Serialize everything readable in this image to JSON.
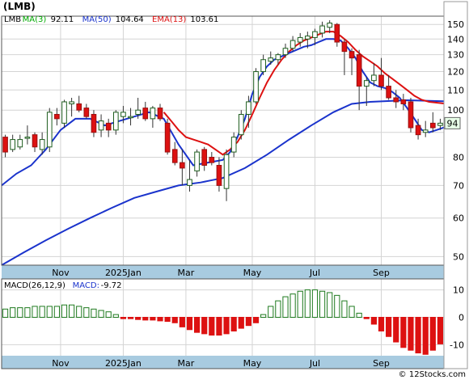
{
  "symbol_label": "(LMB)",
  "watermark": "© 12Stocks.com",
  "colors": {
    "up_candle": "#ffffff",
    "down_candle": "#dd1111",
    "ma3": "#00aa00",
    "ma50": "#1a33cc",
    "ema13": "#dd1111",
    "macd_pos": "#1e7a1e",
    "macd_neg": "#dd1111",
    "axis_band": "#a8cbe0",
    "price_tag_bg": "#e8ffe8"
  },
  "price_legend": [
    {
      "label": "LMB",
      "color": "#000000"
    },
    {
      "label": "MA(3)",
      "value": "92.11",
      "color": "#00aa00"
    },
    {
      "label": "MA(50)",
      "value": "104.64",
      "color": "#1a33cc"
    },
    {
      "label": "EMA(13)",
      "value": "103.61",
      "color": "#dd1111"
    }
  ],
  "macd_legend": [
    {
      "label": "MACD(26,12,9)",
      "color": "#000000"
    },
    {
      "label": "MACD:",
      "value": "-9.72",
      "color": "#1a33cc"
    }
  ],
  "last_price_tag": "94",
  "chart_data": [
    {
      "type": "candlestick",
      "scale": "log",
      "ylim": [
        48,
        156
      ],
      "y_ticks": [
        50,
        60,
        70,
        80,
        90,
        100,
        110,
        120,
        130,
        140,
        150
      ],
      "y_tick_labels": [
        "50",
        "60",
        "70",
        "80",
        "",
        "100",
        "110",
        "120",
        "130",
        "140",
        "150"
      ],
      "x_tick_labels": [
        {
          "label": "Nov",
          "week": 8
        },
        {
          "label": "2025Jan",
          "week": 16.5
        },
        {
          "label": "Mar",
          "week": 25
        },
        {
          "label": "May",
          "week": 34
        },
        {
          "label": "Jul",
          "week": 42.5
        },
        {
          "label": "Sep",
          "week": 51.5
        }
      ],
      "candles": [
        {
          "w": 0.5,
          "o": 88,
          "h": 89,
          "l": 80,
          "c": 82
        },
        {
          "w": 1.5,
          "o": 83,
          "h": 89,
          "l": 82,
          "c": 87
        },
        {
          "w": 2.5,
          "o": 84,
          "h": 89,
          "l": 83,
          "c": 87
        },
        {
          "w": 3.5,
          "o": 88,
          "h": 93,
          "l": 85,
          "c": 88
        },
        {
          "w": 4.5,
          "o": 89,
          "h": 90,
          "l": 82,
          "c": 84
        },
        {
          "w": 5.5,
          "o": 83,
          "h": 90,
          "l": 81,
          "c": 87
        },
        {
          "w": 6.5,
          "o": 84,
          "h": 101,
          "l": 82,
          "c": 99
        },
        {
          "w": 7.5,
          "o": 98,
          "h": 101,
          "l": 93,
          "c": 96
        },
        {
          "w": 8.5,
          "o": 94,
          "h": 105,
          "l": 92,
          "c": 104
        },
        {
          "w": 9.5,
          "o": 103,
          "h": 106,
          "l": 97,
          "c": 104
        },
        {
          "w": 10.5,
          "o": 103,
          "h": 107,
          "l": 99,
          "c": 100
        },
        {
          "w": 11.5,
          "o": 101,
          "h": 103,
          "l": 96,
          "c": 97
        },
        {
          "w": 12.5,
          "o": 98,
          "h": 100,
          "l": 88,
          "c": 90
        },
        {
          "w": 13.5,
          "o": 91,
          "h": 98,
          "l": 88,
          "c": 95
        },
        {
          "w": 14.5,
          "o": 94,
          "h": 96,
          "l": 88,
          "c": 91
        },
        {
          "w": 15.5,
          "o": 91,
          "h": 100,
          "l": 89,
          "c": 99
        },
        {
          "w": 16.5,
          "o": 97,
          "h": 102,
          "l": 94,
          "c": 99
        },
        {
          "w": 17.5,
          "o": 97,
          "h": 101,
          "l": 93,
          "c": 97
        },
        {
          "w": 18.5,
          "o": 98,
          "h": 106,
          "l": 96,
          "c": 100
        },
        {
          "w": 19.5,
          "o": 101,
          "h": 104,
          "l": 95,
          "c": 96
        },
        {
          "w": 20.5,
          "o": 96,
          "h": 102,
          "l": 92,
          "c": 101
        },
        {
          "w": 21.5,
          "o": 101,
          "h": 103,
          "l": 95,
          "c": 96
        },
        {
          "w": 22.5,
          "o": 94,
          "h": 96,
          "l": 81,
          "c": 82
        },
        {
          "w": 23.5,
          "o": 83,
          "h": 86,
          "l": 77,
          "c": 78
        },
        {
          "w": 24.5,
          "o": 78,
          "h": 83,
          "l": 70,
          "c": 76
        },
        {
          "w": 25.5,
          "o": 70,
          "h": 79,
          "l": 68,
          "c": 72
        },
        {
          "w": 26.5,
          "o": 75,
          "h": 83,
          "l": 73,
          "c": 82
        },
        {
          "w": 27.5,
          "o": 83,
          "h": 84,
          "l": 75,
          "c": 77
        },
        {
          "w": 28.5,
          "o": 80,
          "h": 82,
          "l": 77,
          "c": 78
        },
        {
          "w": 29.5,
          "o": 77,
          "h": 80,
          "l": 68,
          "c": 70
        },
        {
          "w": 30.5,
          "o": 69,
          "h": 83,
          "l": 65,
          "c": 81
        },
        {
          "w": 31.5,
          "o": 82,
          "h": 90,
          "l": 80,
          "c": 88
        },
        {
          "w": 32.5,
          "o": 89,
          "h": 100,
          "l": 87,
          "c": 98
        },
        {
          "w": 33.5,
          "o": 98,
          "h": 107,
          "l": 92,
          "c": 104
        },
        {
          "w": 34.5,
          "o": 104,
          "h": 122,
          "l": 103,
          "c": 120
        },
        {
          "w": 35.5,
          "o": 120,
          "h": 130,
          "l": 118,
          "c": 127
        },
        {
          "w": 36.5,
          "o": 126,
          "h": 132,
          "l": 124,
          "c": 128
        },
        {
          "w": 37.5,
          "o": 127,
          "h": 131,
          "l": 124,
          "c": 130
        },
        {
          "w": 38.5,
          "o": 130,
          "h": 137,
          "l": 128,
          "c": 134
        },
        {
          "w": 39.5,
          "o": 134,
          "h": 142,
          "l": 132,
          "c": 139
        },
        {
          "w": 40.5,
          "o": 138,
          "h": 144,
          "l": 135,
          "c": 141
        },
        {
          "w": 41.5,
          "o": 140,
          "h": 145,
          "l": 134,
          "c": 142
        },
        {
          "w": 42.5,
          "o": 141,
          "h": 147,
          "l": 136,
          "c": 145
        },
        {
          "w": 43.5,
          "o": 144,
          "h": 152,
          "l": 141,
          "c": 149
        },
        {
          "w": 44.5,
          "o": 148,
          "h": 153,
          "l": 144,
          "c": 151
        },
        {
          "w": 45.5,
          "o": 150,
          "h": 151,
          "l": 135,
          "c": 138
        },
        {
          "w": 46.5,
          "o": 138,
          "h": 140,
          "l": 118,
          "c": 132
        },
        {
          "w": 47.5,
          "o": 132,
          "h": 134,
          "l": 118,
          "c": 128
        },
        {
          "w": 48.5,
          "o": 130,
          "h": 133,
          "l": 100,
          "c": 112
        },
        {
          "w": 49.5,
          "o": 112,
          "h": 117,
          "l": 102,
          "c": 115
        },
        {
          "w": 50.5,
          "o": 115,
          "h": 125,
          "l": 112,
          "c": 118
        },
        {
          "w": 51.5,
          "o": 118,
          "h": 128,
          "l": 110,
          "c": 112
        },
        {
          "w": 52.5,
          "o": 112,
          "h": 118,
          "l": 105,
          "c": 106
        },
        {
          "w": 53.5,
          "o": 106,
          "h": 110,
          "l": 101,
          "c": 104
        },
        {
          "w": 54.5,
          "o": 105,
          "h": 108,
          "l": 100,
          "c": 103
        },
        {
          "w": 55.5,
          "o": 104,
          "h": 106,
          "l": 90,
          "c": 92
        },
        {
          "w": 56.5,
          "o": 93,
          "h": 96,
          "l": 87,
          "c": 89
        },
        {
          "w": 57.5,
          "o": 90,
          "h": 95,
          "l": 88,
          "c": 91
        },
        {
          "w": 58.5,
          "o": 94,
          "h": 99,
          "l": 90,
          "c": 92
        },
        {
          "w": 59.5,
          "o": 93,
          "h": 96,
          "l": 91,
          "c": 94
        }
      ],
      "series": [
        {
          "name": "MA(50)",
          "color": "#1a33cc",
          "points": [
            [
              0,
              48
            ],
            [
              3,
              51
            ],
            [
              6,
              54
            ],
            [
              9,
              57
            ],
            [
              12,
              60
            ],
            [
              15,
              63
            ],
            [
              18,
              66
            ],
            [
              21,
              68
            ],
            [
              24,
              70
            ],
            [
              27,
              71
            ],
            [
              30,
              72.5
            ],
            [
              33,
              76
            ],
            [
              36,
              81
            ],
            [
              39,
              87
            ],
            [
              42,
              93
            ],
            [
              45,
              99
            ],
            [
              47.5,
              103
            ],
            [
              50,
              104
            ],
            [
              53,
              104.5
            ],
            [
              55,
              104.8
            ],
            [
              57,
              104.6
            ],
            [
              59,
              104.4
            ],
            [
              60,
              104.3
            ]
          ]
        },
        {
          "name": "EMA(13)",
          "color": "#dd1111",
          "points": [
            [
              22,
              99
            ],
            [
              23,
              95
            ],
            [
              24,
              91
            ],
            [
              25,
              88
            ],
            [
              26,
              87
            ],
            [
              27,
              86
            ],
            [
              28,
              85
            ],
            [
              29,
              83
            ],
            [
              30,
              81
            ],
            [
              31,
              83
            ],
            [
              32,
              86
            ],
            [
              33,
              91
            ],
            [
              34,
              98
            ],
            [
              35,
              106
            ],
            [
              36,
              114
            ],
            [
              37,
              121
            ],
            [
              38,
              127
            ],
            [
              39,
              132
            ],
            [
              40,
              136
            ],
            [
              41,
              139
            ],
            [
              42,
              141
            ],
            [
              43,
              143
            ],
            [
              44,
              145
            ],
            [
              45,
              145
            ],
            [
              46,
              142
            ],
            [
              47,
              138
            ],
            [
              48,
              133
            ],
            [
              49,
              129
            ],
            [
              50,
              126
            ],
            [
              51,
              123
            ],
            [
              52,
              119
            ],
            [
              53,
              116
            ],
            [
              54,
              113
            ],
            [
              55,
              110
            ],
            [
              56,
              107
            ],
            [
              57,
              105
            ],
            [
              58,
              104
            ],
            [
              59,
              103.6
            ],
            [
              60,
              103.2
            ]
          ]
        },
        {
          "name": "MA(3)",
          "color": "#1a33cc",
          "points": [
            [
              0,
              70
            ],
            [
              2,
              74
            ],
            [
              4,
              77
            ],
            [
              6,
              83
            ],
            [
              8,
              91
            ],
            [
              10,
              96
            ],
            [
              12,
              96
            ],
            [
              14,
              93
            ],
            [
              16,
              95
            ],
            [
              18,
              97
            ],
            [
              20,
              99
            ],
            [
              22,
              96
            ],
            [
              24,
              85
            ],
            [
              26,
              77
            ],
            [
              28,
              78
            ],
            [
              30,
              79
            ],
            [
              31,
              82
            ],
            [
              32,
              88
            ],
            [
              33,
              96
            ],
            [
              34,
              108
            ],
            [
              35,
              117
            ],
            [
              36,
              123
            ],
            [
              37,
              127
            ],
            [
              38,
              129
            ],
            [
              39,
              131
            ],
            [
              40,
              133
            ],
            [
              41,
              135
            ],
            [
              42,
              136
            ],
            [
              43,
              138
            ],
            [
              44,
              140
            ],
            [
              45,
              140
            ],
            [
              46,
              139
            ],
            [
              47,
              134
            ],
            [
              48,
              128
            ],
            [
              49,
              120
            ],
            [
              50,
              114
            ],
            [
              51,
              112
            ],
            [
              52,
              111
            ],
            [
              53,
              109
            ],
            [
              54,
              106
            ],
            [
              55,
              101
            ],
            [
              56,
              96
            ],
            [
              57,
              91
            ],
            [
              58,
              90
            ],
            [
              59,
              91
            ],
            [
              60,
              92.1
            ]
          ]
        }
      ]
    },
    {
      "type": "bar",
      "name": "MACD(26,12,9)",
      "ylim": [
        -14,
        14
      ],
      "y_ticks": [
        10,
        0,
        -10
      ],
      "y_tick_labels": [
        "10",
        "0",
        "-10"
      ],
      "values": [
        3,
        3.5,
        3.5,
        3.5,
        4,
        4,
        4,
        4,
        4.5,
        4.5,
        4,
        3.5,
        3,
        2.5,
        2,
        1,
        -0.5,
        -0.5,
        -0.8,
        -1,
        -1,
        -1.3,
        -1.5,
        -2,
        -3.5,
        -4.5,
        -5.5,
        -6,
        -6.5,
        -6.5,
        -6,
        -5,
        -4,
        -3,
        -2,
        1,
        4,
        6,
        7.5,
        8.5,
        9.5,
        10,
        10,
        9.5,
        9,
        8,
        6,
        4,
        1.5,
        -0.5,
        -2.5,
        -5,
        -7,
        -9,
        -11,
        -12,
        -13,
        -13.5,
        -12,
        -9.7
      ]
    }
  ]
}
